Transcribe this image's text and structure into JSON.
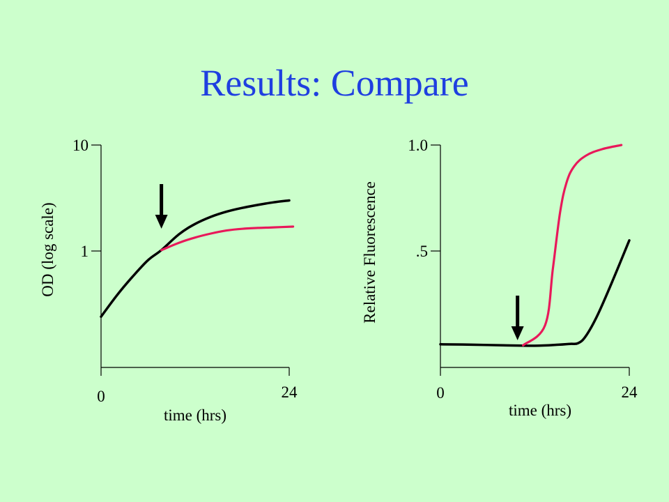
{
  "slide": {
    "title": "Results: Compare"
  },
  "colors": {
    "background": "#ccffcc",
    "title": "#1f3fe0",
    "series_red": "#e8195a",
    "series_black": "#000000"
  },
  "chart_data": [
    {
      "type": "line",
      "title": "",
      "xlabel": "time (hrs)",
      "ylabel": "OD (log scale)",
      "yscale": "log",
      "xlim": [
        0,
        24
      ],
      "ylim": [
        0.2,
        10
      ],
      "x_tick_labels": [
        "0",
        "24"
      ],
      "y_tick_labels": [
        "1",
        "10"
      ],
      "annotation": {
        "type": "arrow-down",
        "x": 7.7
      },
      "series": [
        {
          "color": "#000000",
          "x": [
            0,
            2,
            4,
            6,
            7.7,
            10,
            12,
            14,
            16,
            18,
            20,
            22,
            24
          ],
          "y": [
            0.24,
            0.38,
            0.57,
            0.82,
            1.02,
            1.45,
            1.8,
            2.1,
            2.35,
            2.55,
            2.72,
            2.88,
            3.0
          ]
        },
        {
          "color": "#e8195a",
          "x": [
            7.7,
            10,
            12,
            14,
            16,
            18,
            20,
            22,
            24.5
          ],
          "y": [
            1.02,
            1.2,
            1.34,
            1.46,
            1.56,
            1.62,
            1.65,
            1.67,
            1.7
          ]
        }
      ]
    },
    {
      "type": "line",
      "title": "",
      "xlabel": "time (hrs)",
      "ylabel": "Relative Fluorescence",
      "xlim": [
        0,
        24
      ],
      "ylim": [
        0,
        1.0
      ],
      "x_tick_labels": [
        "0",
        "24"
      ],
      "y_tick_labels": [
        ".5",
        "1.0"
      ],
      "annotation": {
        "type": "arrow-down",
        "x": 9.8
      },
      "series": [
        {
          "color": "#000000",
          "x": [
            0,
            4,
            8,
            12,
            15,
            16.5,
            17.5,
            18.5,
            20,
            22,
            24
          ],
          "y": [
            0.06,
            0.058,
            0.055,
            0.053,
            0.058,
            0.062,
            0.065,
            0.1,
            0.2,
            0.37,
            0.55
          ]
        },
        {
          "color": "#e8195a",
          "x": [
            10.5,
            13.3,
            14.3,
            15.2,
            16,
            17,
            18.5,
            20.5,
            23
          ],
          "y": [
            0.055,
            0.15,
            0.42,
            0.68,
            0.82,
            0.9,
            0.95,
            0.98,
            1.0
          ]
        }
      ]
    }
  ]
}
